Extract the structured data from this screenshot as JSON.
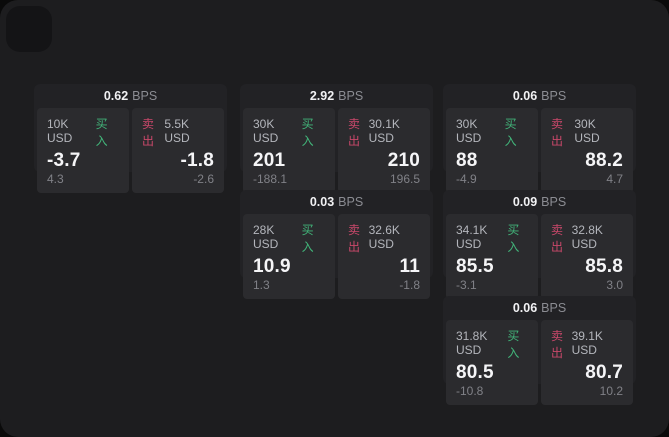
{
  "labels": {
    "buy": "买入",
    "sell": "卖出",
    "bps": "BPS"
  },
  "colors": {
    "background": "#0a0a0a",
    "surface": "#1d1d1f",
    "card": "#222225",
    "panel": "#2b2b2e",
    "buy_green": "#42b57a",
    "sell_red": "#c9486a",
    "value_text": "#f5f5f7",
    "muted_text": "#808187"
  },
  "cards": [
    {
      "bps": "0.62",
      "col": 0,
      "row": 0,
      "buy": {
        "amount": "10K USD",
        "value": "-3.7",
        "sub": "4.3"
      },
      "sell": {
        "amount": "5.5K USD",
        "value": "-1.8",
        "sub": "-2.6"
      }
    },
    {
      "bps": "2.92",
      "col": 1,
      "row": 0,
      "buy": {
        "amount": "30K USD",
        "value": "201",
        "sub": "-188.1"
      },
      "sell": {
        "amount": "30.1K USD",
        "value": "210",
        "sub": "196.5"
      }
    },
    {
      "bps": "0.06",
      "col": 2,
      "row": 0,
      "buy": {
        "amount": "30K USD",
        "value": "88",
        "sub": "-4.9"
      },
      "sell": {
        "amount": "30K USD",
        "value": "88.2",
        "sub": "4.7"
      }
    },
    {
      "bps": "0.03",
      "col": 1,
      "row": 1,
      "buy": {
        "amount": "28K USD",
        "value": "10.9",
        "sub": "1.3"
      },
      "sell": {
        "amount": "32.6K USD",
        "value": "11",
        "sub": "-1.8"
      }
    },
    {
      "bps": "0.09",
      "col": 2,
      "row": 1,
      "buy": {
        "amount": "34.1K USD",
        "value": "85.5",
        "sub": "-3.1"
      },
      "sell": {
        "amount": "32.8K USD",
        "value": "85.8",
        "sub": "3.0"
      }
    },
    {
      "bps": "0.06",
      "col": 2,
      "row": 2,
      "buy": {
        "amount": "31.8K USD",
        "value": "80.5",
        "sub": "-10.8"
      },
      "sell": {
        "amount": "39.1K USD",
        "value": "80.7",
        "sub": "10.2"
      }
    }
  ]
}
